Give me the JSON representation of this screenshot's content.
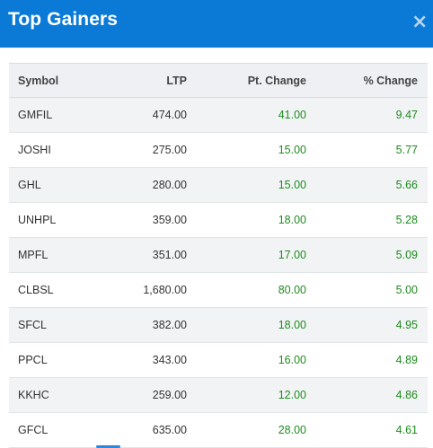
{
  "header": {
    "title": "Top Gainers",
    "close_label": "×"
  },
  "table": {
    "columns": [
      "Symbol",
      "LTP",
      "Pt. Change",
      "% Change"
    ],
    "rows": [
      [
        "GMFIL",
        "474.00",
        "41.00",
        "9.47"
      ],
      [
        "JOSHI",
        "275.00",
        "15.00",
        "5.77"
      ],
      [
        "GHL",
        "280.00",
        "15.00",
        "5.66"
      ],
      [
        "UNHPL",
        "359.00",
        "18.00",
        "5.28"
      ],
      [
        "MPFL",
        "351.00",
        "17.00",
        "5.09"
      ],
      [
        "CLBSL",
        "1,680.00",
        "80.00",
        "5.00"
      ],
      [
        "SFCL",
        "382.00",
        "18.00",
        "4.95"
      ],
      [
        "PPCL",
        "343.00",
        "16.00",
        "4.89"
      ],
      [
        "KKHC",
        "259.00",
        "12.00",
        "4.86"
      ],
      [
        "GFCL",
        "635.00",
        "28.00",
        "4.61"
      ]
    ]
  },
  "colors": {
    "header_bg": "#0a7ad6",
    "positive": "#1e8c1e"
  }
}
